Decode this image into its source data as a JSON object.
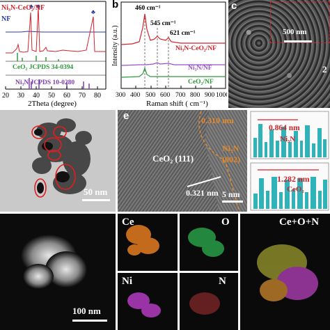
{
  "panel_a": {
    "legend_main": "Ni₃N-CeO₂/NF",
    "legend_nf": "NF",
    "ref1": "CeO₂ JCPDS 34-0394",
    "ref2": "Ni₃N JCPDS 10-0280",
    "xlabel": "2Theta (degree)",
    "xticks": [
      "20",
      "30",
      "40",
      "50",
      "60",
      "70",
      "80"
    ]
  },
  "panel_b": {
    "letter": "b",
    "ylabel": "Intensity (a.u.)",
    "xlabel": "Raman shift ( cm⁻¹)",
    "xticks": [
      "300",
      "400",
      "500",
      "600",
      "700",
      "800",
      "900",
      "1000"
    ],
    "peak_labels": [
      "460 cm⁻¹",
      "545 cm⁻¹",
      "621 cm⁻¹"
    ],
    "series": [
      "Ni₃N-CeO₂/NF",
      "Ni₃N/NF",
      "CeO₂/NF"
    ],
    "colors": {
      "main": "#d1232a",
      "ni3n": "#9b4fc7",
      "ceo2": "#2f9a3c"
    }
  },
  "panel_c": {
    "letter": "c",
    "scale": "500 nm",
    "side_label": "2"
  },
  "panel_d": {
    "scale": "50 nm"
  },
  "panel_e": {
    "letter": "e",
    "spacing1": "0.310 nm",
    "phase1": "Ni₃N",
    "plane1": "(002)",
    "phase2": "CeO₂ (111)",
    "spacing2": "0.321 nm",
    "scale": "5 nm"
  },
  "panel_e_profiles": {
    "top_value": "0.864 nm",
    "top_phase": "Ni₃N",
    "bottom_value": "1.282 nm",
    "bottom_phase": "CeO₂"
  },
  "panel_f": {
    "scale": "100 nm"
  },
  "maps": {
    "ce": "Ce",
    "o": "O",
    "ni": "Ni",
    "n": "N",
    "merged": "Ce+O+N"
  }
}
